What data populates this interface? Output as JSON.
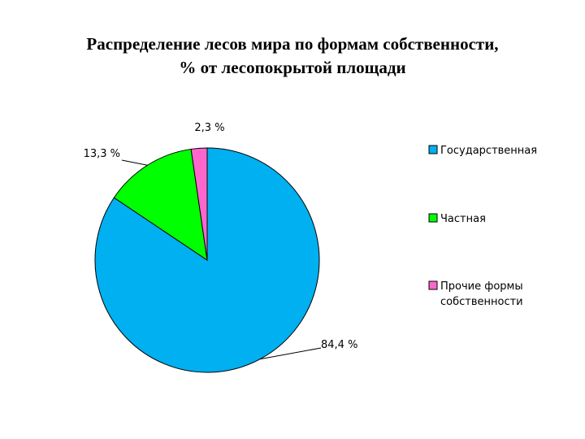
{
  "chart_data": {
    "type": "pie",
    "title_line1": "Распределение лесов мира по формам собственности,",
    "title_line2": "% от лесопокрытой площади",
    "slices": [
      {
        "name": "Государственная",
        "value": 84.4,
        "label": "84,4 %",
        "color": "#00B0F0"
      },
      {
        "name": "Частная",
        "value": 13.3,
        "label": "13,3 %",
        "color": "#00FF00"
      },
      {
        "name": "Прочие формы собственности",
        "legend_lines": [
          "Прочие формы",
          "собственности"
        ],
        "value": 2.3,
        "label": "2,3 %",
        "color": "#FF66CC"
      }
    ],
    "legend_position": "right"
  }
}
